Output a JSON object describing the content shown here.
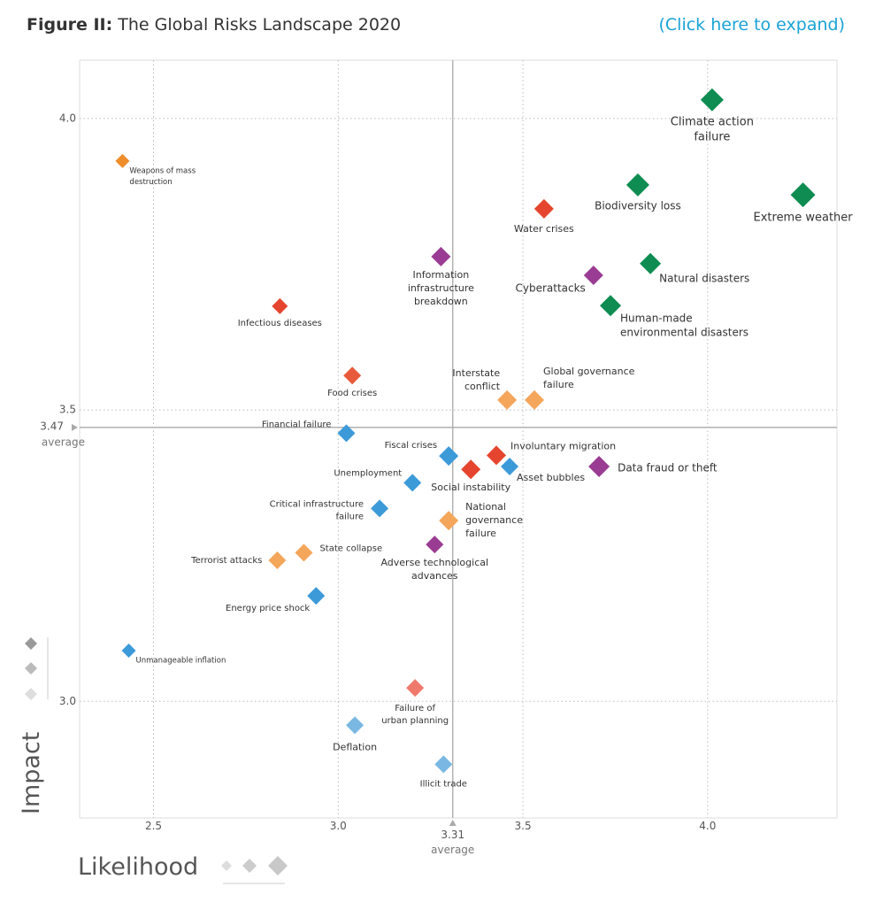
{
  "chart_data": {
    "type": "scatter",
    "title_prefix": "Figure II:",
    "title": "The Global Risks Landscape 2020",
    "expand_link": "(Click here to expand)",
    "x_label": "Likelihood",
    "y_label": "Impact",
    "xlim": [
      2.3,
      4.35
    ],
    "ylim": [
      2.8,
      4.1
    ],
    "xticks": [
      2.5,
      {
        "value": 3,
        "label": "3.0"
      },
      3.5,
      {
        "value": 4,
        "label": "4.0"
      }
    ],
    "yticks": [
      {
        "value": 3,
        "label": "3.0"
      },
      3.5,
      {
        "value": 4,
        "label": "4.0"
      }
    ],
    "grid": true,
    "x_average": 3.31,
    "x_average_label": "average",
    "y_average": 3.47,
    "y_average_label": "average",
    "labels": [
      [
        "Climate action",
        "failure"
      ],
      [
        "Extreme weather"
      ],
      [
        "Biodiversity loss"
      ],
      [
        "Natural disasters"
      ],
      [
        "Human-made",
        "environmental disasters"
      ],
      [
        "Water crises"
      ],
      [
        "Cyberattacks"
      ],
      [
        "Information",
        "infrastructure",
        "breakdown"
      ],
      [
        "Infectious diseases"
      ],
      [
        "Weapons of mass",
        "destruction"
      ],
      [
        "Food crises"
      ],
      [
        "Interstate",
        "conflict"
      ],
      [
        "Global governance",
        "failure"
      ],
      [
        "Financial failure"
      ],
      [
        "Fiscal crises"
      ],
      [
        "Involuntary migration"
      ],
      [
        "Social instability"
      ],
      [
        "Asset bubbles"
      ],
      [
        "Data fraud or theft"
      ],
      [
        "Unemployment"
      ],
      [
        "Critical infrastructure",
        "failure"
      ],
      [
        "National",
        "governance",
        "failure"
      ],
      [
        "Adverse technological",
        "advances"
      ],
      [
        "State collapse"
      ],
      [
        "Terrorist attacks"
      ],
      [
        "Energy price shock"
      ],
      [
        "Unmanageable inflation"
      ],
      [
        "Failure of",
        "urban planning"
      ],
      [
        "Deflation"
      ],
      [
        "Illicit trade"
      ]
    ],
    "x": [
      4.012,
      4.258,
      3.811,
      3.845,
      3.737,
      3.557,
      3.691,
      3.278,
      2.842,
      2.416,
      3.038,
      3.457,
      3.531,
      3.022,
      3.299,
      3.428,
      3.359,
      3.464,
      3.706,
      3.201,
      3.112,
      3.299,
      3.261,
      2.907,
      2.835,
      2.94,
      2.433,
      3.208,
      3.045,
      3.285
    ],
    "values": [
      4.032,
      3.869,
      3.886,
      3.751,
      3.679,
      3.845,
      3.731,
      3.763,
      3.678,
      3.927,
      3.559,
      3.517,
      3.517,
      3.46,
      3.421,
      3.422,
      3.398,
      3.403,
      3.403,
      3.375,
      3.331,
      3.31,
      3.269,
      3.255,
      3.242,
      3.181,
      3.087,
      3.023,
      2.959,
      2.892
    ],
    "colors": [
      "#0f8c51",
      "#0f8c51",
      "#0f8c51",
      "#0f8c51",
      "#0f8c51",
      "#e5452e",
      "#9a3c93",
      "#9a3c93",
      "#e5452e",
      "#ef8d2a",
      "#e85a3c",
      "#f4a65b",
      "#f4a65b",
      "#3d9ad8",
      "#3d9ad8",
      "#e5452e",
      "#e5452e",
      "#3d9ad8",
      "#9a3c93",
      "#3d9ad8",
      "#3d9ad8",
      "#f4a65b",
      "#9a3c93",
      "#f4a65b",
      "#f4a65b",
      "#3d9ad8",
      "#3d9ad8",
      "#ef7a6b",
      "#7ab8e3",
      "#7ab8e3"
    ]
  }
}
